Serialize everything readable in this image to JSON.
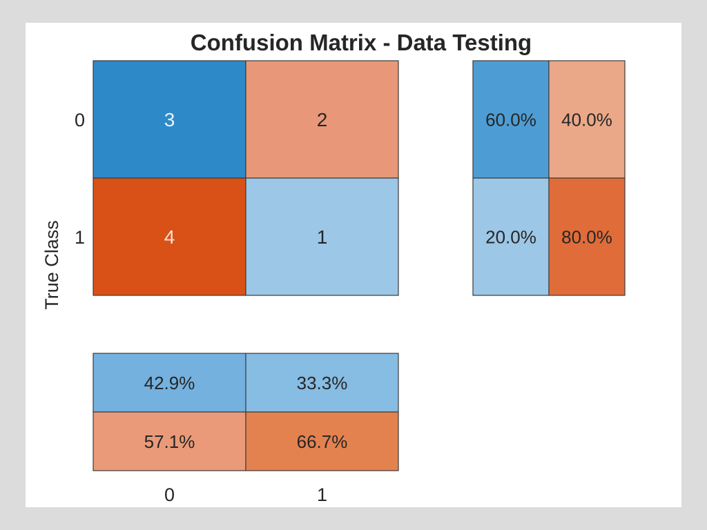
{
  "chart_data": {
    "type": "heatmap",
    "title": "Confusion Matrix - Data Testing",
    "ylabel": "True Class",
    "xlabel": "",
    "classes": [
      "0",
      "1"
    ],
    "matrix": {
      "values": [
        [
          3,
          2
        ],
        [
          4,
          1
        ]
      ],
      "colors": [
        [
          "#2e89c9",
          "#e89878"
        ],
        [
          "#d95117",
          "#9cc7e7"
        ]
      ],
      "text_colors": [
        [
          "#e9f2fa",
          "#262626"
        ],
        [
          "#f3e3da",
          "#262626"
        ]
      ]
    },
    "row_summary": {
      "values": [
        [
          "60.0%",
          "40.0%"
        ],
        [
          "20.0%",
          "80.0%"
        ]
      ],
      "fractions": [
        [
          0.6,
          0.4
        ],
        [
          0.2,
          0.8
        ]
      ],
      "colors": [
        [
          "#4d9dd4",
          "#eaa889"
        ],
        [
          "#9cc7e7",
          "#e06c39"
        ]
      ]
    },
    "column_summary": {
      "values": [
        [
          "42.9%",
          "33.3%"
        ],
        [
          "57.1%",
          "66.7%"
        ]
      ],
      "fractions": [
        [
          0.429,
          0.333
        ],
        [
          0.571,
          0.667
        ]
      ],
      "colors": [
        [
          "#74b1de",
          "#87bce3"
        ],
        [
          "#ea9a78",
          "#e4824f"
        ]
      ]
    }
  }
}
